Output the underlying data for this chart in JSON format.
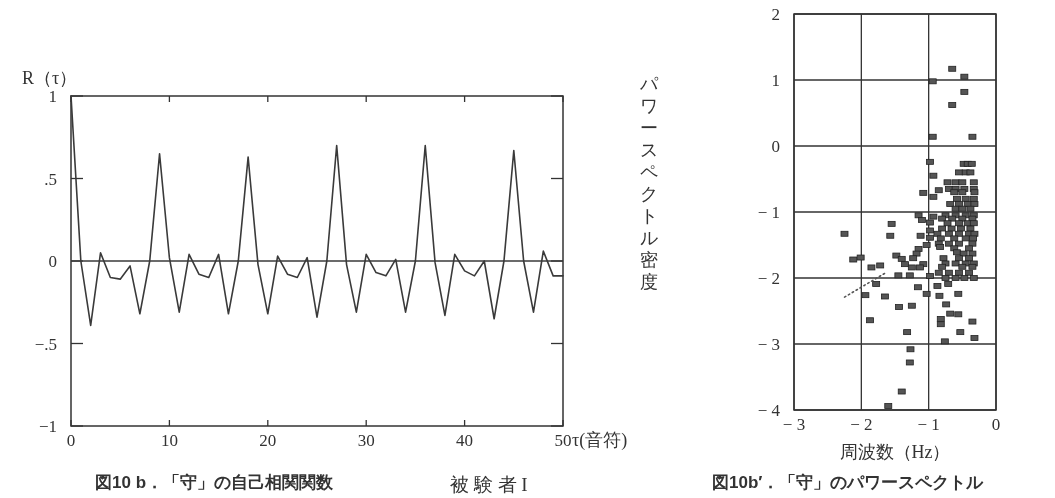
{
  "chart_data": [
    {
      "type": "line",
      "title": "図10 b．「守」の自己相関関数",
      "xlabel": "τ(音符)",
      "ylabel": "R（τ）",
      "annotations": [
        "被 験 者 I"
      ],
      "x": [
        0,
        1,
        2,
        3,
        4,
        5,
        6,
        7,
        8,
        9,
        10,
        11,
        12,
        13,
        14,
        15,
        16,
        17,
        18,
        19,
        20,
        21,
        22,
        23,
        24,
        25,
        26,
        27,
        28,
        29,
        30,
        31,
        32,
        33,
        34,
        35,
        36,
        37,
        38,
        39,
        40,
        41,
        42,
        43,
        44,
        45,
        46,
        47,
        48,
        49,
        50
      ],
      "series": [
        {
          "color": "#3a3a3a",
          "values": [
            1,
            0,
            -0.39,
            0.05,
            -0.1,
            -0.11,
            -0.03,
            -0.32,
            0,
            0.65,
            0.02,
            -0.31,
            0.04,
            -0.08,
            -0.1,
            0.04,
            -0.32,
            0,
            0.63,
            -0.02,
            -0.32,
            0.03,
            -0.08,
            -0.1,
            0.02,
            -0.34,
            0,
            0.7,
            -0.02,
            -0.31,
            0.04,
            -0.07,
            -0.09,
            0.01,
            -0.31,
            0,
            0.7,
            -0.01,
            -0.33,
            0.04,
            -0.06,
            -0.09,
            0,
            -0.35,
            0,
            0.67,
            0,
            -0.31,
            0.06,
            -0.09,
            -0.09
          ]
        }
      ],
      "xlim": [
        0,
        50
      ],
      "xticks": [
        0,
        10,
        20,
        30,
        40,
        50
      ],
      "ylim": [
        -1,
        1
      ],
      "yticks": [
        {
          "value": 1,
          "label": "1"
        },
        {
          "value": 0.5,
          "label": ".5"
        },
        {
          "value": 0,
          "label": "0"
        },
        {
          "value": -0.5,
          "label": "−.5"
        },
        {
          "value": -1,
          "label": "−1"
        }
      ],
      "ref_lines": [
        {
          "axis": "y",
          "value": 0,
          "color": "#3a3a3a"
        }
      ]
    },
    {
      "type": "scatter",
      "title": "図10b′．「守」のパワースペクトル",
      "xlabel": "周波数（Hz）",
      "ylabel": "パワースペクトル密度",
      "grid": true,
      "series": [
        {
          "marker": "square",
          "color": "#555555",
          "x": [
            -0.65,
            -0.47,
            -0.94,
            -0.47,
            -0.65,
            -0.94,
            -0.35,
            -2.25,
            -2.12,
            -2.01,
            -1.87,
            -1.57,
            -1.55,
            -1.6,
            -1.4,
            -1.28,
            -1.27,
            -1.32,
            -1.44,
            -1.25,
            -1.65,
            -1.94,
            -1.78,
            -1.16,
            -1.03,
            -0.84,
            -0.87,
            -0.74,
            -0.68,
            -0.82,
            -0.82,
            -0.56,
            -0.35,
            -0.53,
            -0.32,
            -0.76,
            -0.56,
            -0.71,
            -0.48,
            -0.42,
            -0.36,
            -0.55,
            -0.45,
            -0.38,
            -0.93,
            -0.98,
            -0.72,
            -0.6,
            -0.5,
            -0.33,
            -0.7,
            -0.6,
            -0.47,
            -0.33,
            -1.08,
            -0.85,
            -0.62,
            -0.5,
            -0.32,
            -0.93,
            -0.58,
            -0.45,
            -0.33,
            -0.68,
            -0.55,
            -0.42,
            -0.32,
            -0.6,
            -0.5,
            -0.38,
            -1.15,
            -0.93,
            -0.75,
            -0.6,
            -0.45,
            -0.33,
            -1.1,
            -0.8,
            -0.65,
            -0.5,
            -0.35,
            -0.98,
            -0.72,
            -0.55,
            -0.42,
            -0.33,
            -0.98,
            -0.8,
            -0.66,
            -0.52,
            -0.38,
            -1.12,
            -0.87,
            -0.7,
            -0.55,
            -0.4,
            -0.32,
            -0.98,
            -0.82,
            -0.62,
            -0.45,
            -0.34,
            -1.03,
            -0.85,
            -0.7,
            -0.55,
            -0.35,
            -1.15,
            -0.83,
            -0.62,
            -0.4,
            -1.48,
            -1.18,
            -0.58,
            -0.48,
            -0.35,
            -1.4,
            -1.23,
            -0.78,
            -0.55,
            -0.4,
            -1.35,
            -1.08,
            -0.75,
            -0.6,
            -0.45,
            -0.33,
            -1.85,
            -1.72,
            -1.25,
            -1.13,
            -0.8,
            -0.5,
            -0.35,
            -1.45,
            -1.28,
            -0.85,
            -0.7,
            -0.55,
            -0.4,
            -0.98,
            -0.75,
            -0.6,
            -0.47,
            -0.33
          ],
          "values": [
            1.17,
            1.05,
            0.98,
            0.82,
            0.62,
            0.14,
            0.14,
            -1.33,
            -1.72,
            -1.69,
            -2.64,
            -1.36,
            -1.18,
            -3.94,
            -3.72,
            -3.28,
            -3.08,
            -2.82,
            -2.44,
            -2.42,
            -2.28,
            -2.26,
            -2.09,
            -2.14,
            -2.24,
            -2.27,
            -2.12,
            -2.4,
            -2.54,
            -2.62,
            -2.7,
            -2.55,
            -2.66,
            -2.82,
            -2.91,
            -2.96,
            -2.24,
            -2.09,
            -0.27,
            -0.27,
            -0.27,
            -0.4,
            -0.4,
            -0.4,
            -0.45,
            -0.24,
            -0.55,
            -0.55,
            -0.55,
            -0.55,
            -0.65,
            -0.65,
            -0.65,
            -0.65,
            -0.71,
            -0.67,
            -0.7,
            -0.7,
            -0.7,
            -0.77,
            -0.8,
            -0.8,
            -0.8,
            -0.88,
            -0.88,
            -0.88,
            -0.88,
            -0.95,
            -0.95,
            -0.95,
            -1.05,
            -1.07,
            -1.05,
            -1.05,
            -1.05,
            -1.05,
            -1.12,
            -1.1,
            -1.1,
            -1.1,
            -1.1,
            -1.16,
            -1.17,
            -1.17,
            -1.17,
            -1.17,
            -1.28,
            -1.25,
            -1.25,
            -1.25,
            -1.25,
            -1.36,
            -1.33,
            -1.33,
            -1.33,
            -1.33,
            -1.33,
            -1.39,
            -1.4,
            -1.4,
            -1.4,
            -1.4,
            -1.5,
            -1.48,
            -1.48,
            -1.48,
            -1.48,
            -1.56,
            -1.53,
            -1.55,
            -1.55,
            -1.66,
            -1.63,
            -1.61,
            -1.63,
            -1.63,
            -1.71,
            -1.7,
            -1.7,
            -1.7,
            -1.7,
            -1.79,
            -1.79,
            -1.78,
            -1.78,
            -1.78,
            -1.78,
            -1.84,
            -1.81,
            -1.84,
            -1.84,
            -1.83,
            -1.83,
            -1.83,
            -1.96,
            -1.96,
            -1.92,
            -1.92,
            -1.92,
            -1.92,
            -1.97,
            -2.0,
            -2.0,
            -2.0,
            -2.0
          ]
        },
        {
          "type": "line",
          "color": "#555555",
          "line_style": "dotted",
          "x": [
            -2.25,
            -1.62
          ],
          "values": [
            -2.29,
            -1.91
          ]
        }
      ],
      "xlim": [
        -3,
        0
      ],
      "xticks": [
        {
          "value": -3,
          "label": "− 3"
        },
        {
          "value": -2,
          "label": "− 2"
        },
        {
          "value": -1,
          "label": "− 1"
        },
        {
          "value": 0,
          "label": "0"
        }
      ],
      "ylim": [
        -4,
        2
      ],
      "yticks": [
        {
          "value": 2,
          "label": "2"
        },
        {
          "value": 1,
          "label": "1"
        },
        {
          "value": 0,
          "label": "0"
        },
        {
          "value": -1,
          "label": "− 1"
        },
        {
          "value": -2,
          "label": "− 2"
        },
        {
          "value": -3,
          "label": "− 3"
        },
        {
          "value": -4,
          "label": "− 4"
        }
      ]
    }
  ]
}
